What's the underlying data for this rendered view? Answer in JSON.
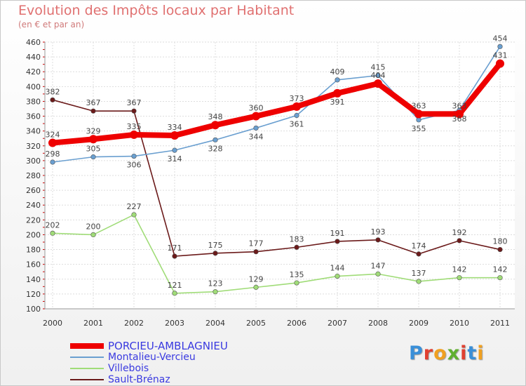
{
  "title": "Evolution des Impôts locaux par Habitant",
  "subtitle": "(en € et par an)",
  "logo": {
    "text": "Proxiti",
    "letters": [
      "P",
      "r",
      "o",
      "x",
      "i",
      "t",
      "i"
    ],
    "colors": [
      "#3a8fd8",
      "#e04030",
      "#f0a020",
      "#60b030",
      "#e04030",
      "#3a8fd8",
      "#f0a020"
    ]
  },
  "chart_data": {
    "type": "line",
    "x": [
      "2000",
      "2001",
      "2002",
      "2003",
      "2004",
      "2005",
      "2006",
      "2007",
      "2008",
      "2009",
      "2010",
      "2011"
    ],
    "ylim": [
      100,
      460
    ],
    "yticks": [
      100,
      120,
      140,
      160,
      180,
      200,
      220,
      240,
      260,
      280,
      300,
      320,
      340,
      360,
      380,
      400,
      420,
      440,
      460
    ],
    "grid": true,
    "legend_position": "bottom-left",
    "series": [
      {
        "name": "PORCIEU-AMBLAGNIEU",
        "color": "#ee0000",
        "values": [
          324,
          329,
          335,
          334,
          348,
          360,
          373,
          391,
          404,
          363,
          363,
          431
        ],
        "labels": [
          "324",
          "329",
          "335",
          "334",
          "348",
          "360",
          "373",
          "391",
          "404",
          "363",
          "363",
          "431"
        ]
      },
      {
        "name": "Montalieu-Vercieu",
        "color": "#6a9fd0",
        "values": [
          298,
          305,
          306,
          314,
          328,
          344,
          361,
          409,
          415,
          355,
          368,
          454
        ],
        "labels": [
          "298",
          "305",
          "306",
          "314",
          "328",
          "344",
          "361",
          "409",
          "415",
          "355",
          "368",
          "454"
        ]
      },
      {
        "name": "Villebois",
        "color": "#a0dc78",
        "values": [
          202,
          200,
          227,
          121,
          123,
          129,
          135,
          144,
          147,
          137,
          142,
          142
        ],
        "labels": [
          "202",
          "200",
          "227",
          "121",
          "123",
          "129",
          "135",
          "144",
          "147",
          "137",
          "142",
          "142"
        ]
      },
      {
        "name": "Sault-Brénaz",
        "color": "#6b1a1a",
        "values": [
          382,
          367,
          367,
          171,
          175,
          177,
          183,
          191,
          193,
          174,
          192,
          180
        ],
        "labels": [
          "382",
          "367",
          "367",
          "171",
          "175",
          "177",
          "183",
          "191",
          "193",
          "174",
          "192",
          "180"
        ]
      }
    ]
  }
}
